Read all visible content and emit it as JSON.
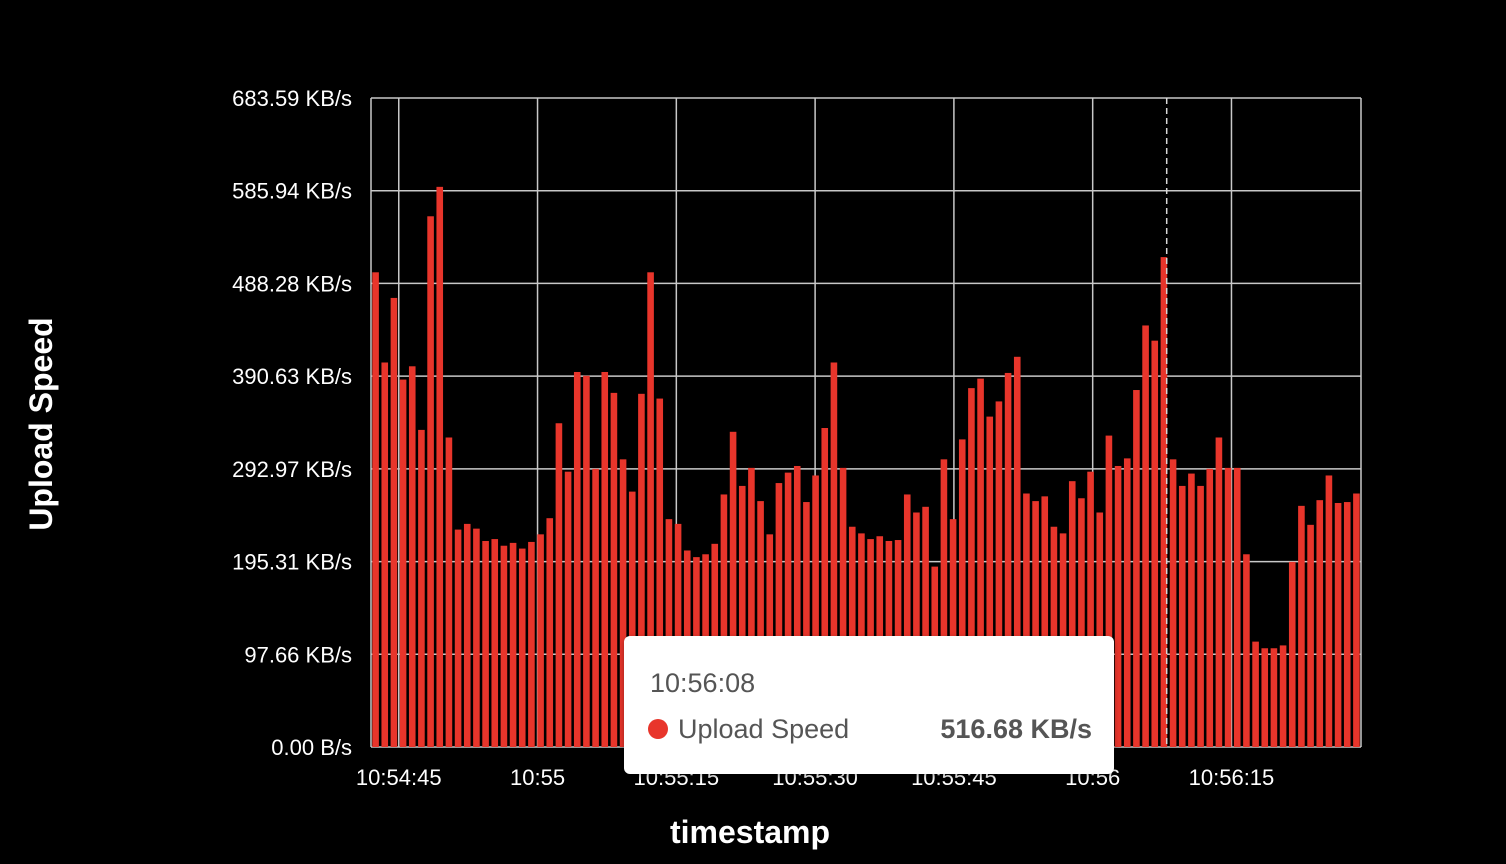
{
  "colors": {
    "background": "#000000",
    "bar": "#e8352b",
    "grid": "#c8c8c8",
    "text": "#ffffff",
    "tooltip_bg": "#ffffff",
    "tooltip_text": "#555555"
  },
  "chart_data": {
    "type": "bar",
    "xlabel": "timestamp",
    "ylabel": "Upload Speed",
    "y_unit": "KB/s",
    "ylim": [
      0,
      683.59
    ],
    "y_ticks": [
      {
        "value": 0,
        "label": "0.00 B/s"
      },
      {
        "value": 97.66,
        "label": "97.66 KB/s"
      },
      {
        "value": 195.31,
        "label": "195.31 KB/s"
      },
      {
        "value": 292.97,
        "label": "292.97 KB/s"
      },
      {
        "value": 390.63,
        "label": "390.63 KB/s"
      },
      {
        "value": 488.28,
        "label": "488.28 KB/s"
      },
      {
        "value": 585.94,
        "label": "585.94 KB/s"
      },
      {
        "value": 683.59,
        "label": "683.59 KB/s"
      }
    ],
    "x_start_time": "10:54:42",
    "x_end_time": "10:56:29",
    "x_ticks": [
      {
        "time": "10:54:45",
        "label": "10:54:45"
      },
      {
        "time": "10:55:00",
        "label": "10:55"
      },
      {
        "time": "10:55:15",
        "label": "10:55:15"
      },
      {
        "time": "10:55:30",
        "label": "10:55:30"
      },
      {
        "time": "10:55:45",
        "label": "10:55:45"
      },
      {
        "time": "10:56:00",
        "label": "10:56"
      },
      {
        "time": "10:56:15",
        "label": "10:56:15"
      }
    ],
    "grid": true,
    "legend": "none",
    "hover_time": "10:56:08",
    "series": [
      {
        "name": "Upload Speed",
        "values": [
          500,
          405,
          473,
          387,
          401,
          334,
          559,
          590,
          326,
          229,
          235,
          230,
          217,
          219,
          212,
          215,
          209,
          216,
          224,
          241,
          341,
          290,
          395,
          391,
          293,
          395,
          373,
          303,
          269,
          372,
          500,
          367,
          240,
          235,
          207,
          200,
          203,
          214,
          266,
          332,
          275,
          294,
          259,
          224,
          278,
          289,
          296,
          258,
          286,
          336,
          405,
          294,
          232,
          225,
          219,
          222,
          217,
          218,
          266,
          247,
          253,
          190,
          303,
          240,
          324,
          378,
          388,
          348,
          364,
          394,
          411,
          267,
          259,
          264,
          232,
          225,
          280,
          262,
          290,
          247,
          328,
          296,
          304,
          376,
          444,
          428,
          516,
          303,
          275,
          288,
          275,
          293,
          326,
          294,
          294,
          203,
          111,
          104,
          104,
          107,
          195,
          254,
          234,
          260,
          286,
          257,
          258,
          267
        ]
      }
    ]
  },
  "tooltip": {
    "time": "10:56:08",
    "series_name": "Upload Speed",
    "value": "516.68 KB/s",
    "dot_color": "#e8352b"
  }
}
